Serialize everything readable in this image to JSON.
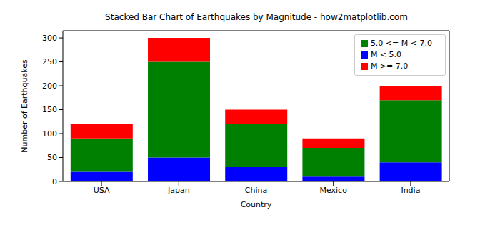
{
  "chart_data": {
    "type": "bar",
    "title": "Stacked Bar Chart of Earthquakes by Magnitude - how2matplotlib.com",
    "x_label": "Country",
    "y_label": "Number of Earthquakes",
    "categories": [
      "USA",
      "Japan",
      "China",
      "Mexico",
      "India"
    ],
    "series": [
      {
        "name": "M < 5.0",
        "color": "#0000ff",
        "values": [
          20,
          50,
          30,
          10,
          40
        ]
      },
      {
        "name": "5.0 <= M < 7.0",
        "color": "#008000",
        "values": [
          70,
          200,
          90,
          60,
          130
        ]
      },
      {
        "name": "M >= 7.0",
        "color": "#ff0000",
        "values": [
          30,
          50,
          30,
          20,
          30
        ]
      }
    ],
    "ylim": [
      0,
      315
    ],
    "yticks": [
      0,
      50,
      100,
      150,
      200,
      250,
      300
    ],
    "stacked": true,
    "legend": "upper right",
    "grid": false
  }
}
